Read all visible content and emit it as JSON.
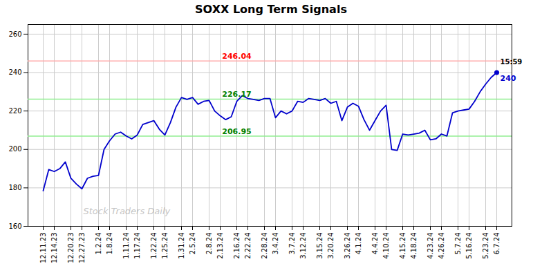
{
  "chart_data": {
    "type": "line",
    "title": "SOXX Long Term Signals",
    "categories": [
      "12.11.23",
      null,
      "12.14.23",
      null,
      null,
      "12.20.23",
      null,
      "12.27.23",
      null,
      null,
      "1.2.24",
      null,
      "1.8.24",
      null,
      null,
      "1.11.24",
      null,
      "1.17.24",
      null,
      null,
      "1.22.24",
      null,
      "1.25.24",
      null,
      null,
      "1.31.24",
      null,
      "2.5.24",
      null,
      null,
      "2.8.24",
      null,
      "2.13.24",
      null,
      null,
      "2.16.24",
      null,
      "2.22.24",
      null,
      null,
      "2.28.24",
      null,
      "3.4.24",
      null,
      null,
      "3.7.24",
      null,
      "3.12.24",
      null,
      null,
      "3.15.24",
      null,
      "3.20.24",
      null,
      null,
      "3.26.24",
      null,
      "4.1.24",
      null,
      null,
      "4.4.24",
      null,
      "4.10.24",
      null,
      null,
      "4.15.24",
      null,
      "4.18.24",
      null,
      null,
      "4.23.24",
      null,
      "4.26.24",
      null,
      null,
      "5.7.24",
      null,
      "5.16.24",
      null,
      null,
      "5.23.24",
      null,
      "6.7.24"
    ],
    "values": [
      178.5,
      189.5,
      188.5,
      190.0,
      193.5,
      185.0,
      182.0,
      179.5,
      185.0,
      186.0,
      186.5,
      200.0,
      204.5,
      208.0,
      209.0,
      207.0,
      205.5,
      207.5,
      213.0,
      214.0,
      215.0,
      210.5,
      207.5,
      214.0,
      222.0,
      227.0,
      226.0,
      227.0,
      223.5,
      225.0,
      225.5,
      220.0,
      217.5,
      215.5,
      217.0,
      225.0,
      228.0,
      226.5,
      226.0,
      225.5,
      226.5,
      226.5,
      216.5,
      220.0,
      218.5,
      220.0,
      225.0,
      224.5,
      226.5,
      226.0,
      225.5,
      226.5,
      224.0,
      225.0,
      215.0,
      222.0,
      224.0,
      222.5,
      215.5,
      210.0,
      215.0,
      220.0,
      223.0,
      200.0,
      199.5,
      208.0,
      207.5,
      208.0,
      208.5,
      210.0,
      205.0,
      205.5,
      208.0,
      207.0,
      219.0,
      220.0,
      220.5,
      221.0,
      225.0,
      230.0,
      234.0,
      237.5,
      240.0
    ],
    "color": "#0000cc",
    "ylim": [
      160,
      265
    ],
    "yticks": [
      160,
      180,
      200,
      220,
      240,
      260
    ],
    "grid": true,
    "reference_lines": [
      {
        "value": 246.04,
        "label": "246.04",
        "color": "#ffaaaa",
        "label_color": "red"
      },
      {
        "value": 226.17,
        "label": "226.17",
        "color": "#90ee90",
        "label_color": "green"
      },
      {
        "value": 206.95,
        "label": "206.95",
        "color": "#90ee90",
        "label_color": "green"
      }
    ],
    "last_point_marker": "circle",
    "last_point_labels": [
      "15:59",
      "240"
    ],
    "watermark": "Stock Traders Daily"
  }
}
